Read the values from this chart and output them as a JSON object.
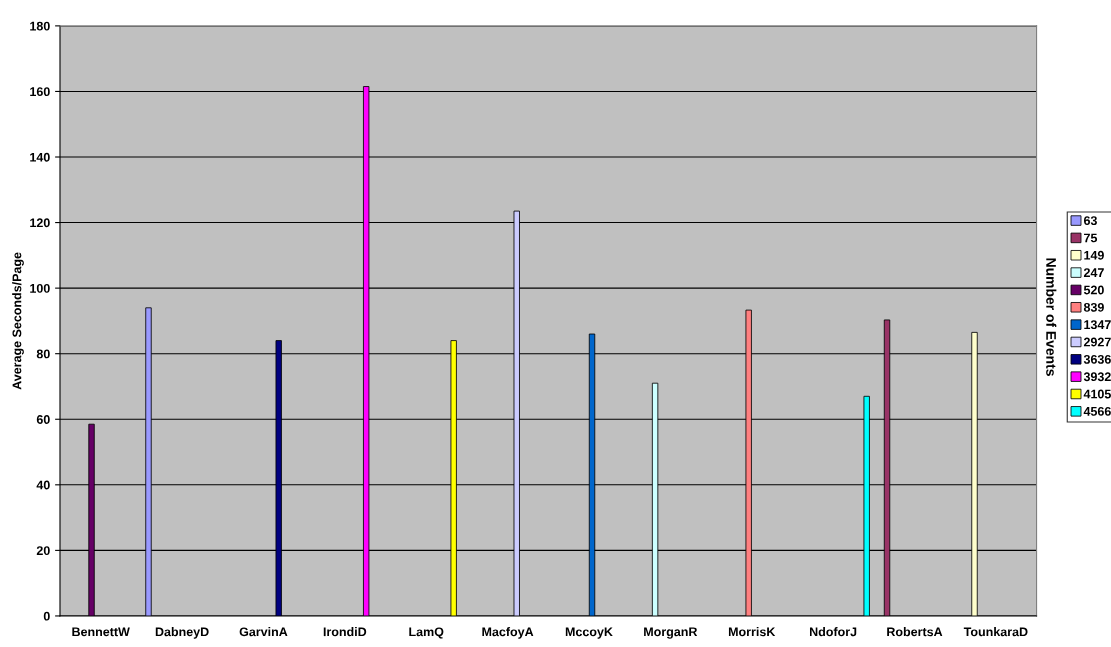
{
  "chart_data": {
    "type": "bar",
    "ylabel": "Average Seconds/Page",
    "legend_title": "Number of Events",
    "categories": [
      "BennettW",
      "DabneyD",
      "GarvinA",
      "IrondiD",
      "LamQ",
      "MacfoyA",
      "MccoyK",
      "MorganR",
      "MorrisK",
      "NdoforJ",
      "RobertsA",
      "TounkaraD"
    ],
    "series": [
      {
        "name": "63",
        "color": "#9999ff",
        "values": [
          null,
          94,
          null,
          null,
          null,
          null,
          null,
          null,
          null,
          null,
          null,
          null
        ]
      },
      {
        "name": "75",
        "color": "#993366",
        "values": [
          null,
          null,
          null,
          null,
          null,
          null,
          null,
          null,
          null,
          null,
          90.3,
          null
        ]
      },
      {
        "name": "149",
        "color": "#ffffcc",
        "values": [
          null,
          null,
          null,
          null,
          null,
          null,
          null,
          null,
          null,
          null,
          null,
          86.5
        ]
      },
      {
        "name": "247",
        "color": "#ccffff",
        "values": [
          null,
          null,
          null,
          null,
          null,
          null,
          null,
          71,
          null,
          null,
          null,
          null
        ]
      },
      {
        "name": "520",
        "color": "#660066",
        "values": [
          58.5,
          null,
          null,
          null,
          null,
          null,
          null,
          null,
          null,
          null,
          null,
          null
        ]
      },
      {
        "name": "839",
        "color": "#ff8080",
        "values": [
          null,
          null,
          null,
          null,
          null,
          null,
          null,
          null,
          93.3,
          null,
          null,
          null
        ]
      },
      {
        "name": "1347",
        "color": "#0066cc",
        "values": [
          null,
          null,
          null,
          null,
          null,
          null,
          86,
          null,
          null,
          null,
          null,
          null
        ]
      },
      {
        "name": "2927",
        "color": "#ccccff",
        "values": [
          null,
          null,
          null,
          null,
          null,
          123.5,
          null,
          null,
          null,
          null,
          null,
          null
        ]
      },
      {
        "name": "3636",
        "color": "#000080",
        "values": [
          null,
          null,
          84,
          null,
          null,
          null,
          null,
          null,
          null,
          null,
          null,
          null
        ]
      },
      {
        "name": "3932",
        "color": "#ff00ff",
        "values": [
          null,
          null,
          null,
          161.5,
          null,
          null,
          null,
          null,
          null,
          null,
          null,
          null
        ]
      },
      {
        "name": "4105",
        "color": "#ffff00",
        "values": [
          null,
          null,
          null,
          null,
          84,
          null,
          null,
          null,
          null,
          null,
          null,
          null
        ]
      },
      {
        "name": "4566",
        "color": "#00ffff",
        "values": [
          null,
          null,
          null,
          null,
          null,
          null,
          null,
          null,
          null,
          67,
          null,
          null
        ]
      }
    ],
    "ylim": [
      0,
      180
    ],
    "yticks": [
      0,
      20,
      40,
      60,
      80,
      100,
      120,
      140,
      160,
      180
    ],
    "grid": "y",
    "legend": "right"
  }
}
